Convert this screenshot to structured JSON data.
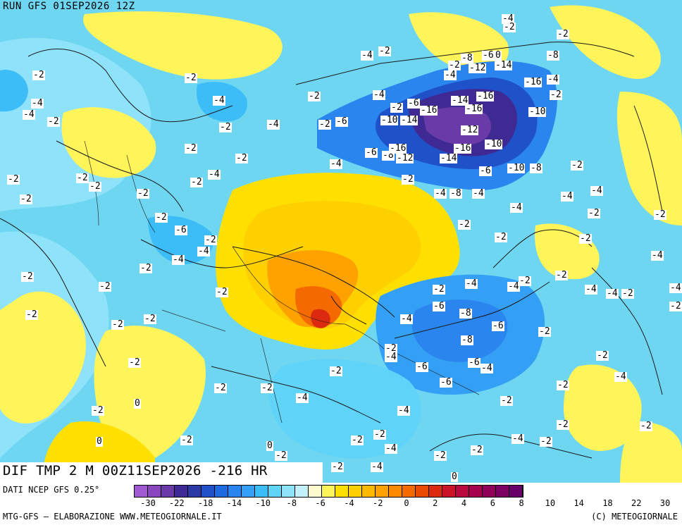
{
  "header": {
    "run_title": "RUN GFS 01SEP2026 12Z"
  },
  "map": {
    "field_title": "DIF TMP 2 M 00Z11SEP2026 -216 HR",
    "labels": [
      "-30",
      "-22",
      "-18",
      "-16",
      "-14",
      "-12",
      "-10",
      "-8",
      "-6",
      "-4",
      "-2",
      "0"
    ],
    "palette": [
      "#a05ad2",
      "#8a46bc",
      "#6a3aa8",
      "#3f2a93",
      "#2c3aa8",
      "#1f52c8",
      "#1f6ae0",
      "#2a85ef",
      "#34a0f5",
      "#3cbdf8",
      "#5fd3f8",
      "#8ee2fa",
      "#c2f0fb",
      "#fffbd0",
      "#fff45a",
      "#ffe000",
      "#ffd000",
      "#ffba00",
      "#ffa200",
      "#ff8a00",
      "#f46a00",
      "#e84a00",
      "#dc2a10",
      "#cc1428",
      "#b8083e",
      "#a4004e",
      "#90005a",
      "#7c0064",
      "#68006a"
    ]
  },
  "legend": {
    "data_source": "DATI NCEP GFS 0.25°",
    "ticks": [
      "-30",
      "-22",
      "-18",
      "-14",
      "-10",
      "-8",
      "-6",
      "-4",
      "-2",
      "0",
      "2",
      "4",
      "6",
      "8",
      "10",
      "14",
      "18",
      "22",
      "30"
    ],
    "credit_left": "MTG-GFS – ELABORAZIONE WWW.METEOGIORNALE.IT",
    "credit_right": "(C) METEOGIORNALE"
  }
}
